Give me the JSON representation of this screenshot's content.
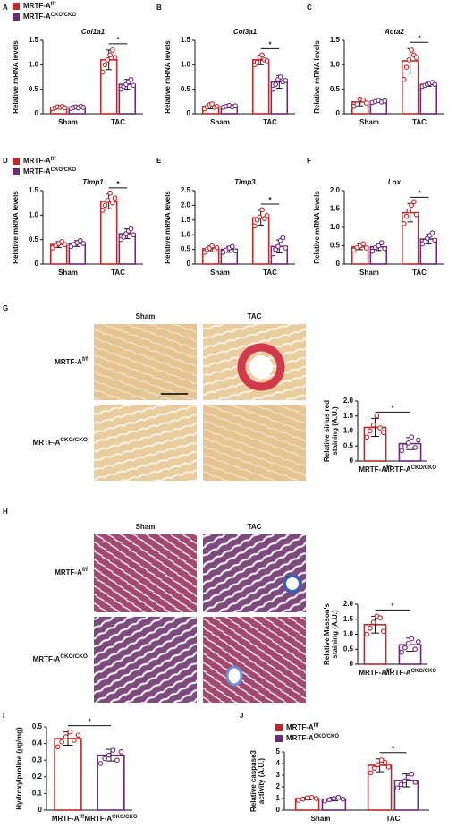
{
  "chart_data": [
    {
      "type": "bar",
      "panel": "A",
      "title": "Col1a1",
      "ylabel": "Relative mRNA levels",
      "categories": [
        "Sham",
        "TAC"
      ],
      "legend": true,
      "annotation": "*",
      "series": [
        {
          "name": "MRTF-A",
          "sup": "f/f",
          "color": "#c0282d",
          "values": [
            0.13,
            1.1
          ],
          "errors": [
            0.03,
            0.2
          ],
          "points": [
            [
              0.1,
              0.12,
              0.14,
              0.13,
              0.15,
              0.12
            ],
            [
              0.85,
              1.0,
              1.1,
              1.2,
              1.3,
              1.15
            ]
          ]
        },
        {
          "name": "MRTF-A",
          "sup": "CKO/CKO",
          "color": "#6a2a7a",
          "values": [
            0.13,
            0.6
          ],
          "errors": [
            0.03,
            0.1
          ],
          "points": [
            [
              0.11,
              0.13,
              0.14,
              0.12,
              0.15,
              0.13
            ],
            [
              0.5,
              0.55,
              0.6,
              0.65,
              0.7,
              0.58
            ]
          ]
        }
      ],
      "ylim": [
        0,
        1.5
      ],
      "yticks": [
        0,
        0.5,
        {
          "value": 1,
          "label": "1.0"
        },
        1.5
      ]
    },
    {
      "type": "bar",
      "panel": "B",
      "title": "Col3a1",
      "ylabel": "Relative mRNA levels",
      "categories": [
        "Sham",
        "TAC"
      ],
      "annotation": "*",
      "series": [
        {
          "name": "MRTF-A",
          "sup": "f/f",
          "color": "#c0282d",
          "values": [
            0.15,
            1.1
          ],
          "errors": [
            0.05,
            0.1
          ],
          "points": [
            [
              0.1,
              0.14,
              0.18,
              0.2,
              0.13,
              0.15
            ],
            [
              1.0,
              1.05,
              1.15,
              1.2,
              1.1,
              1.08
            ]
          ]
        },
        {
          "name": "MRTF-A",
          "sup": "CKO/CKO",
          "color": "#6a2a7a",
          "values": [
            0.15,
            0.65
          ],
          "errors": [
            0.03,
            0.13
          ],
          "points": [
            [
              0.13,
              0.15,
              0.17,
              0.14,
              0.16
            ],
            [
              0.5,
              0.6,
              0.7,
              0.75,
              0.65,
              0.68
            ]
          ]
        }
      ],
      "ylim": [
        0,
        1.5
      ],
      "yticks": [
        0,
        0.5,
        {
          "value": 1,
          "label": "1.0"
        },
        1.5
      ]
    },
    {
      "type": "bar",
      "panel": "C",
      "title": "Acta2",
      "ylabel": "Relative mRNA levels",
      "categories": [
        "Sham",
        "TAC"
      ],
      "annotation": "*",
      "series": [
        {
          "name": "MRTF-A",
          "sup": "f/f",
          "color": "#c0282d",
          "values": [
            0.24,
            1.08
          ],
          "errors": [
            0.08,
            0.25
          ],
          "points": [
            [
              0.15,
              0.2,
              0.3,
              0.28,
              0.22
            ],
            [
              0.7,
              0.95,
              1.1,
              1.3,
              1.2,
              1.15
            ]
          ]
        },
        {
          "name": "MRTF-A",
          "sup": "CKO/CKO",
          "color": "#6a2a7a",
          "values": [
            0.25,
            0.6
          ],
          "errors": [
            0.02,
            0.04
          ],
          "points": [
            [
              0.23,
              0.25,
              0.27,
              0.24,
              0.26
            ],
            [
              0.56,
              0.58,
              0.6,
              0.62,
              0.64,
              0.6
            ]
          ]
        }
      ],
      "ylim": [
        0,
        1.5
      ],
      "yticks": [
        0,
        0.5,
        {
          "value": 1,
          "label": "1.0"
        },
        1.5
      ]
    },
    {
      "type": "bar",
      "panel": "D",
      "title": "Timp1",
      "ylabel": "Relative mRNA levels",
      "categories": [
        "Sham",
        "TAC"
      ],
      "legend": true,
      "annotation": "*",
      "series": [
        {
          "name": "MRTF-A",
          "sup": "f/f",
          "color": "#c0282d",
          "values": [
            0.4,
            1.28
          ],
          "errors": [
            0.06,
            0.15
          ],
          "points": [
            [
              0.33,
              0.38,
              0.42,
              0.46,
              0.4
            ],
            [
              1.1,
              1.2,
              1.3,
              1.45,
              1.25,
              1.35
            ]
          ]
        },
        {
          "name": "MRTF-A",
          "sup": "CKO/CKO",
          "color": "#6a2a7a",
          "values": [
            0.42,
            0.62
          ],
          "errors": [
            0.06,
            0.1
          ],
          "points": [
            [
              0.36,
              0.4,
              0.44,
              0.48,
              0.42
            ],
            [
              0.5,
              0.55,
              0.62,
              0.68,
              0.72,
              0.6
            ]
          ]
        }
      ],
      "ylim": [
        0,
        1.5
      ],
      "yticks": [
        0,
        0.5,
        {
          "value": 1,
          "label": "1.0"
        },
        1.5
      ]
    },
    {
      "type": "bar",
      "panel": "E",
      "title": "Timp3",
      "ylabel": "Relative mRNA levels",
      "categories": [
        "Sham",
        "TAC"
      ],
      "annotation": "*",
      "series": [
        {
          "name": "MRTF-A",
          "sup": "f/f",
          "color": "#c0282d",
          "values": [
            0.52,
            1.58
          ],
          "errors": [
            0.1,
            0.25
          ],
          "points": [
            [
              0.4,
              0.5,
              0.55,
              0.62,
              0.48,
              0.56
            ],
            [
              1.3,
              1.5,
              1.6,
              1.85,
              1.55,
              1.65
            ]
          ]
        },
        {
          "name": "MRTF-A",
          "sup": "CKO/CKO",
          "color": "#6a2a7a",
          "values": [
            0.5,
            0.6
          ],
          "errors": [
            0.1,
            0.22
          ],
          "points": [
            [
              0.4,
              0.48,
              0.55,
              0.6,
              0.45
            ],
            [
              0.35,
              0.5,
              0.6,
              0.8,
              0.9,
              0.55
            ]
          ]
        }
      ],
      "ylim": [
        0,
        2.5
      ],
      "yticks": [
        0,
        0.5,
        {
          "value": 1,
          "label": "1.0"
        },
        1.5,
        {
          "value": 2,
          "label": "2.0"
        },
        2.5
      ]
    },
    {
      "type": "bar",
      "panel": "F",
      "title": "Lox",
      "ylabel": "Relative mRNA levels",
      "categories": [
        "Sham",
        "TAC"
      ],
      "annotation": "*",
      "series": [
        {
          "name": "MRTF-A",
          "sup": "f/f",
          "color": "#c0282d",
          "values": [
            0.47,
            1.4
          ],
          "errors": [
            0.08,
            0.25
          ],
          "points": [
            [
              0.38,
              0.45,
              0.5,
              0.55,
              0.44
            ],
            [
              1.1,
              1.3,
              1.45,
              1.6,
              1.7,
              1.35
            ]
          ]
        },
        {
          "name": "MRTF-A",
          "sup": "CKO/CKO",
          "color": "#6a2a7a",
          "values": [
            0.47,
            0.68
          ],
          "errors": [
            0.1,
            0.13
          ],
          "points": [
            [
              0.35,
              0.45,
              0.5,
              0.58,
              0.42
            ],
            [
              0.55,
              0.62,
              0.7,
              0.78,
              0.85,
              0.65
            ]
          ]
        }
      ],
      "ylim": [
        0,
        2
      ],
      "yticks": [
        0,
        0.5,
        {
          "value": 1,
          "label": "1.0"
        },
        1.5,
        {
          "value": 2,
          "label": "2.0"
        }
      ]
    },
    {
      "type": "bar",
      "panel": "G",
      "ylabel": [
        "Relative sirius red",
        "staining (A.U.)"
      ],
      "annotation": "*",
      "image_columns": [
        "Sham",
        "TAC"
      ],
      "image_rows": [
        {
          "name": "MRTF-A",
          "sup": "f/f"
        },
        {
          "name": "MRTF-A",
          "sup": "CKO/CKO"
        }
      ],
      "categories": [
        "MRTF-A",
        "MRTF-A"
      ],
      "category_sups": [
        "f/f",
        "CKO/CKO"
      ],
      "colors": [
        "#c0282d",
        "#6a2a7a"
      ],
      "values": [
        1.12,
        0.58
      ],
      "errors": [
        0.3,
        0.2
      ],
      "points": [
        [
          0.8,
          1.0,
          1.2,
          1.5,
          1.1,
          0.95
        ],
        [
          0.35,
          0.5,
          0.6,
          0.8,
          0.45,
          0.7
        ]
      ],
      "ylim": [
        0,
        2
      ],
      "yticks": [
        0,
        0.5,
        {
          "value": 1,
          "label": "1.0"
        },
        1.5,
        {
          "value": 2,
          "label": "2.0"
        }
      ]
    },
    {
      "type": "bar",
      "panel": "H",
      "ylabel": [
        "Relative Masson's",
        "staining (A.U.)"
      ],
      "annotation": "*",
      "image_columns": [
        "Sham",
        "TAC"
      ],
      "image_rows": [
        {
          "name": "MRTF-A",
          "sup": "f/f"
        },
        {
          "name": "MRTF-A",
          "sup": "CKO/CKO"
        }
      ],
      "categories": [
        "MRTF-A",
        "MRTF-A"
      ],
      "category_sups": [
        "f/f",
        "CKO/CKO"
      ],
      "colors": [
        "#c0282d",
        "#6a2a7a"
      ],
      "values": [
        1.32,
        0.65
      ],
      "errors": [
        0.28,
        0.22
      ],
      "points": [
        [
          1.0,
          1.2,
          1.4,
          1.6,
          1.55,
          1.1
        ],
        [
          0.4,
          0.55,
          0.7,
          0.85,
          0.5,
          0.75
        ]
      ],
      "ylim": [
        0,
        2
      ],
      "yticks": [
        0,
        0.5,
        {
          "value": 1,
          "label": "1.0"
        },
        1.5,
        {
          "value": 2,
          "label": "2.0"
        }
      ]
    },
    {
      "type": "bar",
      "panel": "I",
      "ylabel": "Hydroxylproline (μg/mg)",
      "annotation": "*",
      "categories": [
        "MRTF-A",
        "MRTF-A"
      ],
      "category_sups": [
        "f/f",
        "CKO/CKO"
      ],
      "colors": [
        "#c0282d",
        "#6a2a7a"
      ],
      "values": [
        0.43,
        0.33
      ],
      "errors": [
        0.04,
        0.035
      ],
      "points": [
        [
          0.38,
          0.41,
          0.44,
          0.47,
          0.42,
          0.45
        ],
        [
          0.28,
          0.31,
          0.33,
          0.36,
          0.3,
          0.35
        ]
      ],
      "ylim": [
        0,
        0.5
      ],
      "yticks": [
        0,
        0.1,
        0.2,
        0.3,
        0.4,
        0.5
      ]
    },
    {
      "type": "bar",
      "panel": "J",
      "ylabel": [
        "Relative caspase3",
        "activity (A.U.)"
      ],
      "categories": [
        "Sham",
        "TAC"
      ],
      "legend": true,
      "annotation": "*",
      "series": [
        {
          "name": "MRTF-A",
          "sup": "f/f",
          "color": "#c0282d",
          "values": [
            1.0,
            3.85
          ],
          "errors": [
            0.12,
            0.55
          ],
          "points": [
            [
              0.85,
              0.95,
              1.05,
              1.1,
              1.0
            ],
            [
              3.2,
              3.6,
              3.9,
              4.3,
              4.1,
              3.7
            ]
          ]
        },
        {
          "name": "MRTF-A",
          "sup": "CKO/CKO",
          "color": "#6a2a7a",
          "values": [
            0.95,
            2.55
          ],
          "errors": [
            0.15,
            0.55
          ],
          "points": [
            [
              0.8,
              0.9,
              1.0,
              1.1,
              0.95
            ],
            [
              1.9,
              2.2,
              2.5,
              2.8,
              3.1,
              2.4
            ]
          ]
        }
      ],
      "ylim": [
        0,
        5
      ],
      "yticks": [
        0,
        1,
        2,
        3,
        4,
        5
      ]
    }
  ]
}
